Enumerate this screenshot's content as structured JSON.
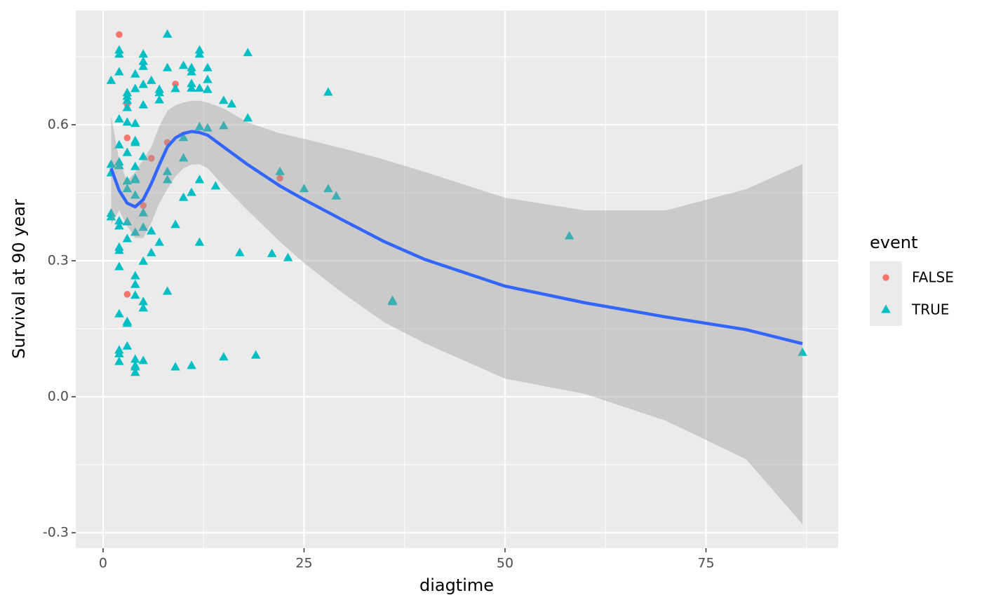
{
  "chart_data": {
    "type": "scatter",
    "x_label": "diagtime",
    "y_label": "Survival at 90 year",
    "legend_title": "event",
    "xlim": [
      -3.4,
      91.45
    ],
    "ylim": [
      -0.334,
      0.852
    ],
    "xticks": [
      0,
      25,
      50,
      75
    ],
    "yticks": [
      -0.3,
      {
        "value": 0,
        "label": "0.0"
      },
      0.3,
      0.6
    ],
    "xminor": [
      12.5,
      37.5,
      62.5,
      87.5
    ],
    "yminor": [
      -0.15,
      0.15,
      0.45,
      0.75
    ],
    "grid": true,
    "legend": "right",
    "series": [
      {
        "name": "FALSE",
        "color": "#F8766D",
        "marker": "circle",
        "x": [
          2,
          9,
          3,
          3,
          8,
          6,
          22,
          5,
          3
        ],
        "values": [
          0.799,
          0.69,
          0.645,
          0.571,
          0.561,
          0.526,
          0.482,
          0.422,
          0.226
        ]
      },
      {
        "name": "TRUE",
        "color": "#00BFC4",
        "marker": "triangle",
        "x": [
          1,
          1,
          1,
          1,
          1,
          2,
          2,
          2,
          2,
          2,
          2,
          2,
          2,
          2,
          2,
          2,
          2,
          2,
          2,
          2,
          2,
          3,
          3,
          3,
          3,
          3,
          3,
          3,
          3,
          3,
          3,
          3,
          3,
          3,
          4,
          4,
          4,
          4,
          4,
          4,
          4,
          4,
          4,
          4,
          4,
          4,
          4,
          4,
          4,
          4,
          4,
          5,
          5,
          5,
          5,
          5,
          5,
          5,
          5,
          5,
          5,
          5,
          5,
          6,
          6,
          6,
          7,
          7,
          7,
          7,
          8,
          8,
          8,
          8,
          8,
          9,
          9,
          9,
          10,
          10,
          10,
          10,
          11,
          11,
          11,
          11,
          11,
          11,
          12,
          12,
          12,
          12,
          12,
          12,
          13,
          13,
          13,
          13,
          14,
          15,
          15,
          15,
          16,
          17,
          18,
          18,
          19,
          21,
          22,
          23,
          25,
          28,
          28,
          29,
          36,
          36,
          58,
          87
        ],
        "values": [
          0.697,
          0.512,
          0.493,
          0.404,
          0.396,
          0.764,
          0.755,
          0.716,
          0.612,
          0.555,
          0.517,
          0.509,
          0.387,
          0.376,
          0.329,
          0.322,
          0.286,
          0.182,
          0.102,
          0.094,
          0.077,
          0.67,
          0.662,
          0.653,
          0.637,
          0.605,
          0.538,
          0.475,
          0.458,
          0.385,
          0.348,
          0.165,
          0.161,
          0.111,
          0.711,
          0.679,
          0.602,
          0.564,
          0.56,
          0.507,
          0.481,
          0.478,
          0.444,
          0.362,
          0.266,
          0.247,
          0.223,
          0.082,
          0.068,
          0.065,
          0.053,
          0.755,
          0.739,
          0.728,
          0.688,
          0.643,
          0.529,
          0.405,
          0.373,
          0.298,
          0.209,
          0.195,
          0.079,
          0.697,
          0.365,
          0.317,
          0.677,
          0.67,
          0.654,
          0.34,
          0.799,
          0.725,
          0.496,
          0.478,
          0.232,
          0.679,
          0.379,
          0.065,
          0.73,
          0.571,
          0.526,
          0.439,
          0.725,
          0.716,
          0.69,
          0.68,
          0.45,
          0.068,
          0.764,
          0.755,
          0.68,
          0.595,
          0.478,
          0.34,
          0.725,
          0.699,
          0.677,
          0.592,
          0.464,
          0.653,
          0.597,
          0.087,
          0.645,
          0.317,
          0.758,
          0.614,
          0.091,
          0.315,
          0.496,
          0.306,
          0.458,
          0.671,
          0.458,
          0.442,
          0.212,
          0.209,
          0.354,
          0.097
        ]
      }
    ],
    "smooth": {
      "color": "#3366FF",
      "band_color": "#999999",
      "x": [
        1,
        2,
        3,
        4,
        5,
        6,
        7,
        8,
        9,
        10,
        11,
        12,
        13,
        15,
        18,
        22,
        25,
        30,
        35,
        40,
        50,
        60,
        70,
        80,
        87
      ],
      "y": [
        0.504,
        0.455,
        0.427,
        0.419,
        0.435,
        0.47,
        0.512,
        0.551,
        0.571,
        0.581,
        0.585,
        0.583,
        0.577,
        0.551,
        0.512,
        0.465,
        0.435,
        0.388,
        0.342,
        0.303,
        0.244,
        0.207,
        0.176,
        0.148,
        0.117
      ],
      "ymin": [
        0.38,
        0.411,
        0.377,
        0.35,
        0.35,
        0.384,
        0.427,
        0.458,
        0.486,
        0.504,
        0.512,
        0.513,
        0.504,
        0.465,
        0.411,
        0.342,
        0.295,
        0.226,
        0.164,
        0.118,
        0.04,
        0.006,
        -0.053,
        -0.138,
        -0.281
      ],
      "ymax": [
        0.62,
        0.52,
        0.476,
        0.496,
        0.523,
        0.551,
        0.597,
        0.631,
        0.643,
        0.649,
        0.653,
        0.653,
        0.649,
        0.636,
        0.605,
        0.581,
        0.569,
        0.547,
        0.523,
        0.496,
        0.439,
        0.411,
        0.411,
        0.458,
        0.513
      ]
    }
  }
}
